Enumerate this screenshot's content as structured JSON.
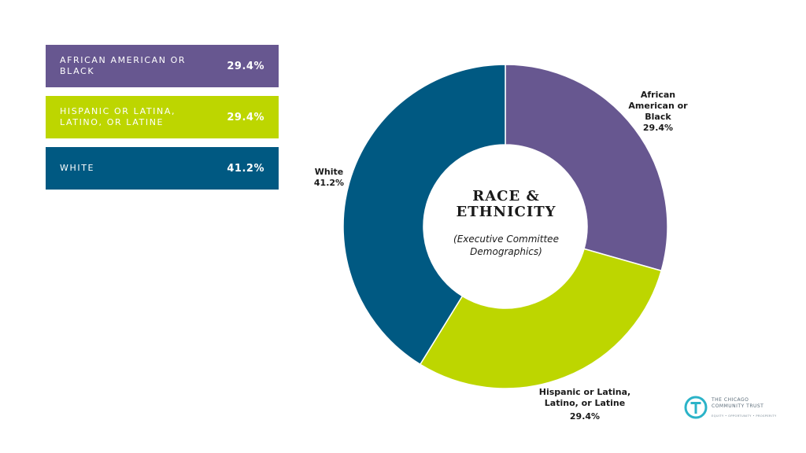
{
  "legend": [
    {
      "label": "AFRICAN AMERICAN OR BLACK",
      "value": "29.4%",
      "color": "#675790"
    },
    {
      "label": "HISPANIC OR LATINA,\nLATINO, OR LATINE",
      "value": "29.4%",
      "color": "#bdd600"
    },
    {
      "label": "WHITE",
      "value": "41.2%",
      "color": "#005982"
    }
  ],
  "slice_labels": [
    {
      "name": "African\nAmerican or\nBlack",
      "pct": "29.4%"
    },
    {
      "name": "Hispanic or Latina,\nLatino, or Latine",
      "pct": "29.4%"
    },
    {
      "name": "White",
      "pct": "41.2%"
    }
  ],
  "center": {
    "title": "RACE &\nETHNICITY",
    "subtitle": "(Executive Committee\nDemographics)"
  },
  "logo": {
    "name": "THE CHICAGO\nCOMMUNITY TRUST",
    "tagline": "EQUITY • OPPORTUNITY • PROSPERITY",
    "color": "#2bb3c8"
  },
  "chart_data": {
    "type": "pie",
    "variant": "donut",
    "title": "RACE & ETHNICITY",
    "subtitle": "(Executive Committee Demographics)",
    "categories": [
      "African American or Black",
      "Hispanic or Latina, Latino, or Latine",
      "White"
    ],
    "values": [
      29.4,
      29.4,
      41.2
    ],
    "colors": [
      "#675790",
      "#bdd600",
      "#005982"
    ],
    "start": "12 o'clock, clockwise",
    "legend_position": "top-left"
  }
}
